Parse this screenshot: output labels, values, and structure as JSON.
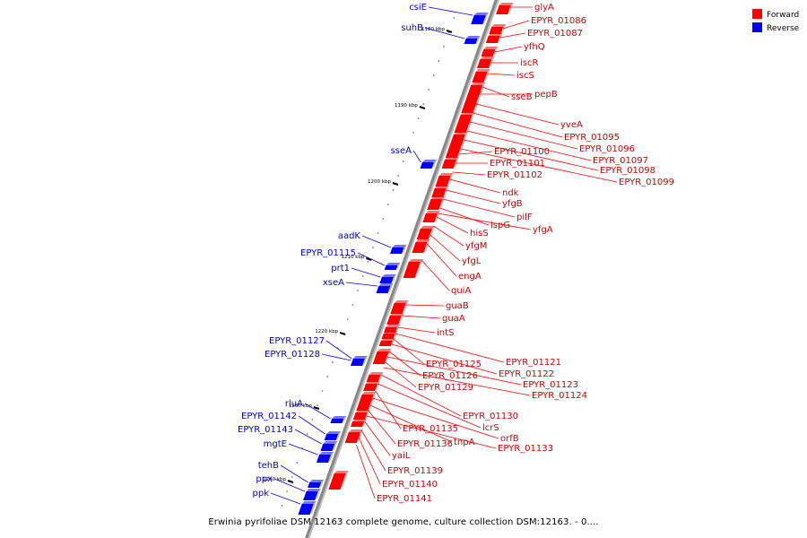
{
  "legend": {
    "items": [
      {
        "label": "Forward",
        "color": "#ff0000"
      },
      {
        "label": "Reverse",
        "color": "#0000ff"
      }
    ]
  },
  "colors": {
    "forward": "#ff0000",
    "reverse": "#0000ff",
    "backbone": "#888888"
  },
  "caption": "Erwinia pyrifoliae DSM 12163 complete genome, culture collection DSM:12163. - 0....",
  "ticks": [
    "1180 kbp",
    "1190 kbp",
    "1200 kbp",
    "1210 kbp",
    "1220 kbp",
    "1230 kbp",
    "1240 kbp"
  ],
  "forward_labels": [
    "glyA",
    "EPYR_01086",
    "EPYR_01087",
    "yfhQ",
    "iscR",
    "iscS",
    "sseB",
    "pepB",
    "yveA",
    "EPYR_01095",
    "EPYR_01096",
    "EPYR_01097",
    "EPYR_01098",
    "EPYR_01099",
    "EPYR_01100",
    "EPYR_01101",
    "EPYR_01102",
    "ndk",
    "yfgB",
    "pilF",
    "ispG",
    "yfgA",
    "hisS",
    "yfgM",
    "yfgL",
    "engA",
    "quiA",
    "guaB",
    "guaA",
    "intS",
    "EPYR_01121",
    "EPYR_01125",
    "EPYR_01122",
    "EPYR_01126",
    "EPYR_01123",
    "EPYR_01129",
    "EPYR_01124",
    "EPYR_01130",
    "lcrS",
    "EPYR_01135",
    "orfB",
    "tnpA",
    "EPYR_01136",
    "EPYR_01133",
    "yaiL",
    "EPYR_01139",
    "EPYR_01140",
    "EPYR_01141"
  ],
  "reverse_labels": [
    "csiE",
    "suhB",
    "sseA",
    "aadK",
    "EPYR_01115",
    "prt1",
    "xseA",
    "EPYR_01127",
    "EPYR_01128",
    "rluA",
    "EPYR_01142",
    "EPYR_01143",
    "mgtE",
    "tehB",
    "ppx",
    "ppk"
  ]
}
